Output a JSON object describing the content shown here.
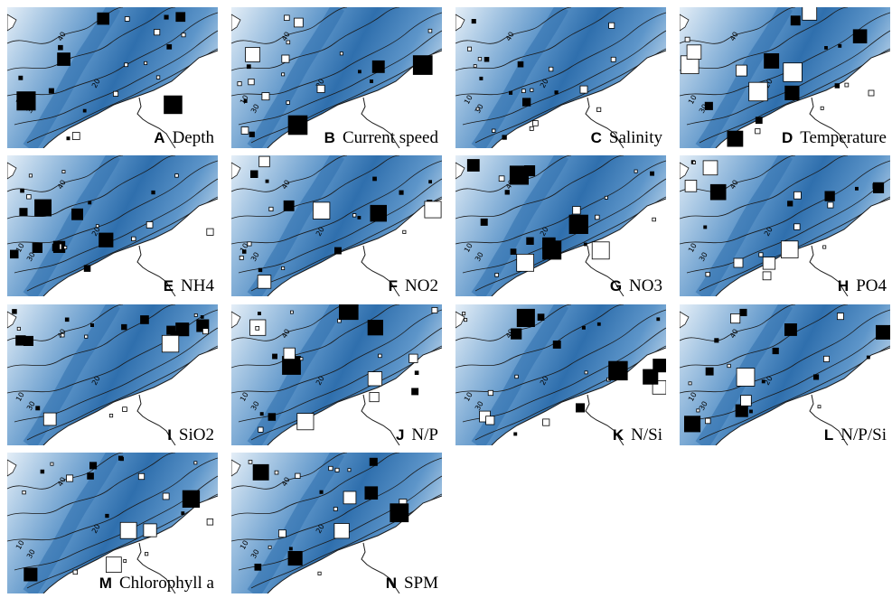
{
  "figure": {
    "panels": [
      {
        "letter": "A",
        "name": "Depth",
        "seed": 11
      },
      {
        "letter": "B",
        "name": "Current speed",
        "seed": 23
      },
      {
        "letter": "C",
        "name": "Salinity",
        "seed": 37
      },
      {
        "letter": "D",
        "name": "Temperature",
        "seed": 41
      },
      {
        "letter": "E",
        "name": "NH4",
        "seed": 53
      },
      {
        "letter": "F",
        "name": "NO2",
        "seed": 67
      },
      {
        "letter": "G",
        "name": "NO3",
        "seed": 71
      },
      {
        "letter": "H",
        "name": "PO4",
        "seed": 83
      },
      {
        "letter": "I",
        "name": "SiO2",
        "seed": 97
      },
      {
        "letter": "J",
        "name": "N/P",
        "seed": 101
      },
      {
        "letter": "K",
        "name": "N/Si",
        "seed": 113
      },
      {
        "letter": "L",
        "name": "N/P/Si",
        "seed": 127
      },
      {
        "letter": "M",
        "name": "Chlorophyll a",
        "seed": 131
      },
      {
        "letter": "N",
        "name": "SPM",
        "seed": 149
      }
    ],
    "contour_labels": [
      "40",
      "30",
      "20",
      "10"
    ],
    "colors": {
      "deep_water": "#2f6fad",
      "mid_water": "#5d95c9",
      "shallow_water": "#a9c8e4",
      "coast_water": "#e4eef7",
      "land": "#ffffff",
      "contour": "#1a1a1a",
      "positive_marker": "#000000",
      "negative_marker": "#ffffff"
    }
  }
}
